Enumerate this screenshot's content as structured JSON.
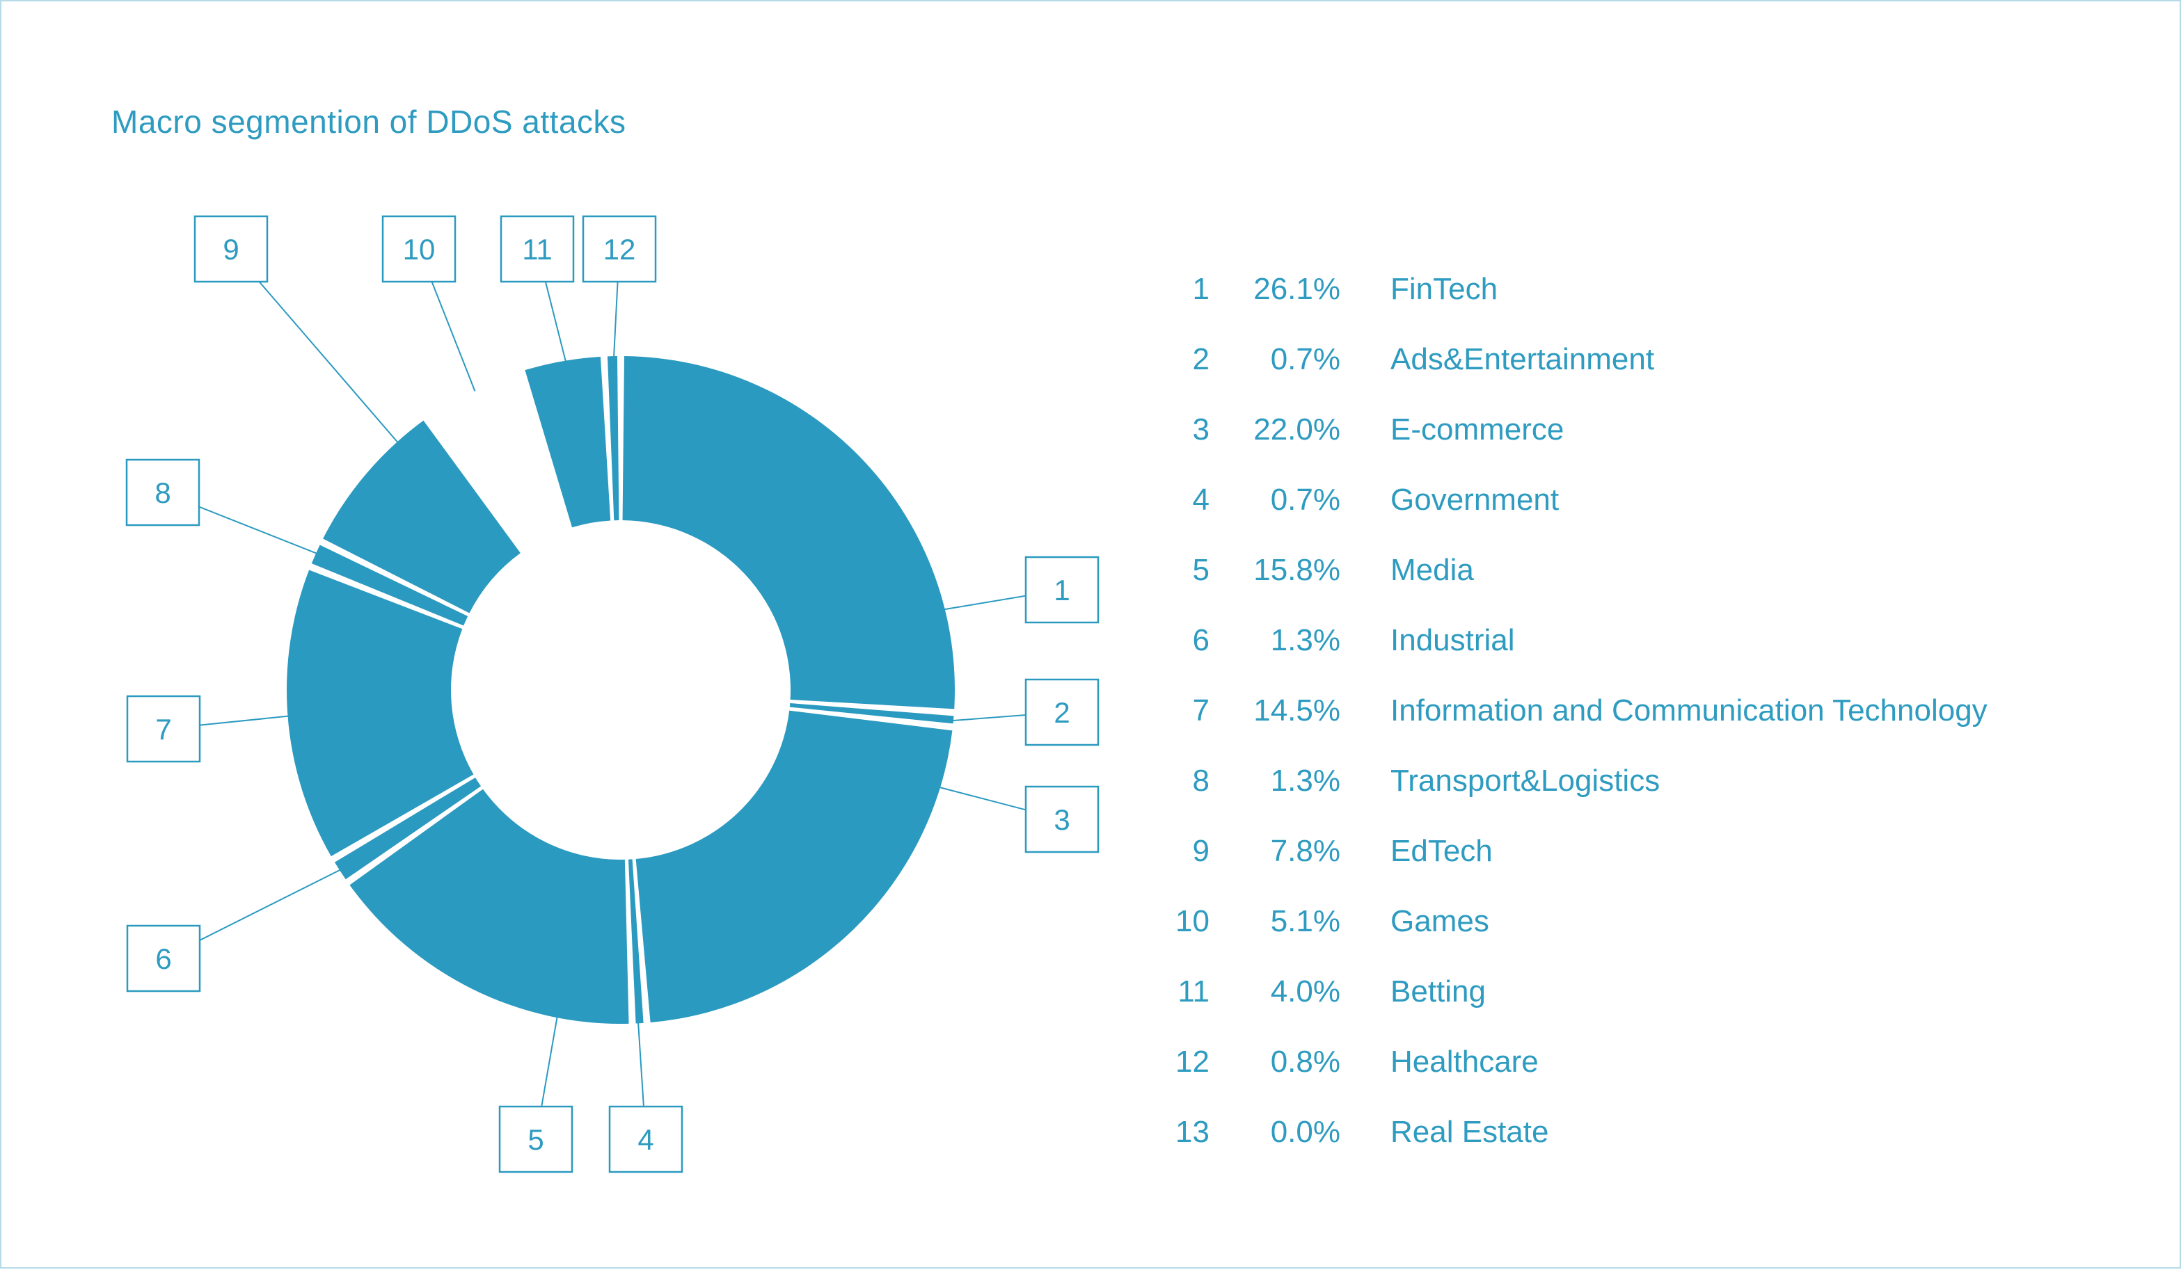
{
  "page": {
    "accent": "#2b9ac0",
    "text_color": "#2e9bc0",
    "border_color": "#b5dae8",
    "background": "#ffffff"
  },
  "chart_data": {
    "type": "pie",
    "donut": true,
    "title": "Macro segmention of DDoS attacks",
    "legend_position": "right",
    "callout_numbers": [
      1,
      2,
      3,
      4,
      5,
      6,
      7,
      8,
      9,
      10,
      11,
      12
    ],
    "items": [
      {
        "n": 1,
        "pct": "26.1%",
        "value": 26.1,
        "label": "FinTech"
      },
      {
        "n": 2,
        "pct": "0.7%",
        "value": 0.7,
        "label": "Ads&Entertainment"
      },
      {
        "n": 3,
        "pct": "22.0%",
        "value": 22.0,
        "label": "E-commerce"
      },
      {
        "n": 4,
        "pct": "0.7%",
        "value": 0.7,
        "label": "Government"
      },
      {
        "n": 5,
        "pct": "15.8%",
        "value": 15.8,
        "label": "Media"
      },
      {
        "n": 6,
        "pct": "1.3%",
        "value": 1.3,
        "label": "Industrial"
      },
      {
        "n": 7,
        "pct": "14.5%",
        "value": 14.5,
        "label": "Information and Communication Technology"
      },
      {
        "n": 8,
        "pct": "1.3%",
        "value": 1.3,
        "label": "Transport&Logistics"
      },
      {
        "n": 9,
        "pct": "7.8%",
        "value": 7.8,
        "label": "EdTech"
      },
      {
        "n": 10,
        "pct": "5.1%",
        "value": 5.1,
        "label": "Games",
        "fill": "white"
      },
      {
        "n": 11,
        "pct": "4.0%",
        "value": 4.0,
        "label": "Betting"
      },
      {
        "n": 12,
        "pct": "0.8%",
        "value": 0.8,
        "label": "Healthcare"
      },
      {
        "n": 13,
        "pct": "0.0%",
        "value": 0.0,
        "label": "Real Estate"
      }
    ]
  }
}
